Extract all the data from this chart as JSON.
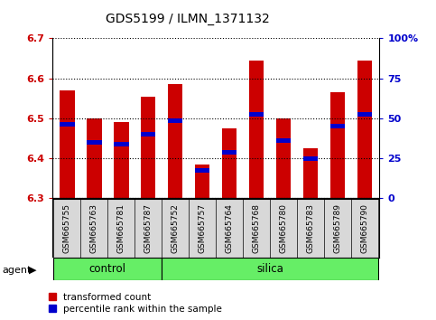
{
  "title": "GDS5199 / ILMN_1371132",
  "samples": [
    "GSM665755",
    "GSM665763",
    "GSM665781",
    "GSM665787",
    "GSM665752",
    "GSM665757",
    "GSM665764",
    "GSM665768",
    "GSM665780",
    "GSM665783",
    "GSM665789",
    "GSM665790"
  ],
  "transformed_count": [
    6.57,
    6.5,
    6.49,
    6.555,
    6.585,
    6.385,
    6.475,
    6.645,
    6.5,
    6.425,
    6.565,
    6.645
  ],
  "percentile_rank": [
    6.485,
    6.44,
    6.435,
    6.46,
    6.495,
    6.37,
    6.415,
    6.51,
    6.445,
    6.4,
    6.48,
    6.51
  ],
  "y_min": 6.3,
  "y_max": 6.7,
  "y_ticks": [
    6.3,
    6.4,
    6.5,
    6.6,
    6.7
  ],
  "right_y_ticks_pct": [
    0,
    25,
    50,
    75,
    100
  ],
  "right_y_labels": [
    "0",
    "25",
    "50",
    "75",
    "100%"
  ],
  "bar_color": "#CC0000",
  "percentile_color": "#0000CC",
  "bar_width": 0.55,
  "control_samples": 4,
  "silica_samples": 8,
  "tick_label_color_left": "#CC0000",
  "tick_label_color_right": "#0000CC",
  "green": "#66EE66",
  "gray_bg": "#D8D8D8"
}
